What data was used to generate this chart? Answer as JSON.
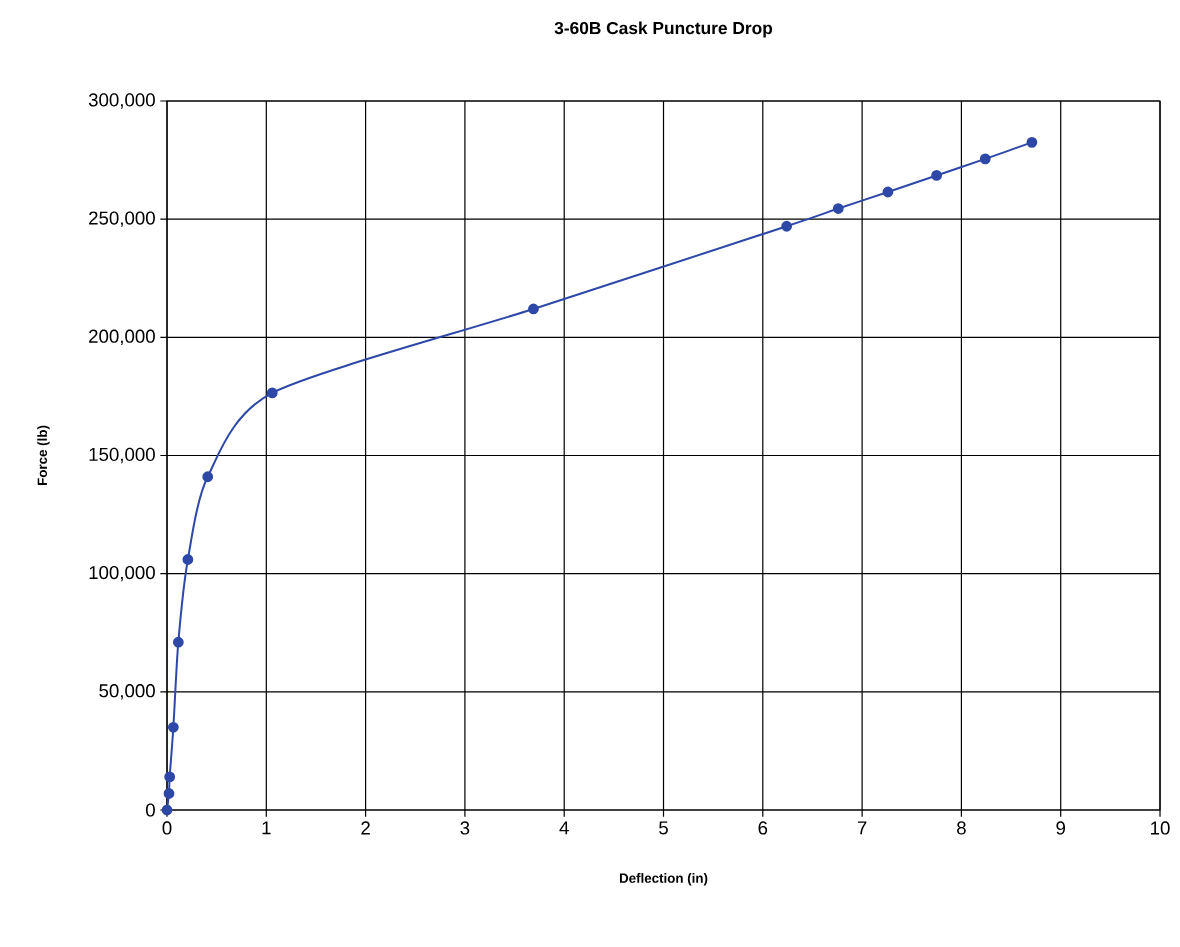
{
  "chart_data": {
    "type": "line",
    "title": "3-60B Cask Puncture Drop",
    "xlabel": "Deflection (in)",
    "ylabel": "Force (lb)",
    "series": [
      {
        "color": "#2e48a8",
        "x": [
          0,
          0.02,
          0.027,
          0.064,
          0.114,
          0.21,
          0.41,
          1.06,
          3.69,
          6.24,
          6.76,
          7.26,
          7.75,
          8.24,
          8.71
        ],
        "values": [
          0,
          7000,
          14000,
          35000,
          71000,
          106000,
          141000,
          176500,
          212000,
          247000,
          254500,
          261500,
          268500,
          275500,
          282500
        ]
      }
    ],
    "xlim": [
      0,
      10
    ],
    "xticks": [
      0,
      1,
      2,
      3,
      4,
      5,
      6,
      7,
      8,
      9,
      10
    ],
    "ylim": [
      0,
      300000
    ],
    "yticks": [
      {
        "value": 0,
        "label": "0"
      },
      {
        "value": 50000,
        "label": "50,000"
      },
      {
        "value": 100000,
        "label": "100,000"
      },
      {
        "value": 150000,
        "label": "150,000"
      },
      {
        "value": 200000,
        "label": "200,000"
      },
      {
        "value": 250000,
        "label": "250,000"
      },
      {
        "value": 300000,
        "label": "300,000"
      }
    ],
    "grid": true,
    "marker": "circle",
    "line_style": "solid"
  }
}
